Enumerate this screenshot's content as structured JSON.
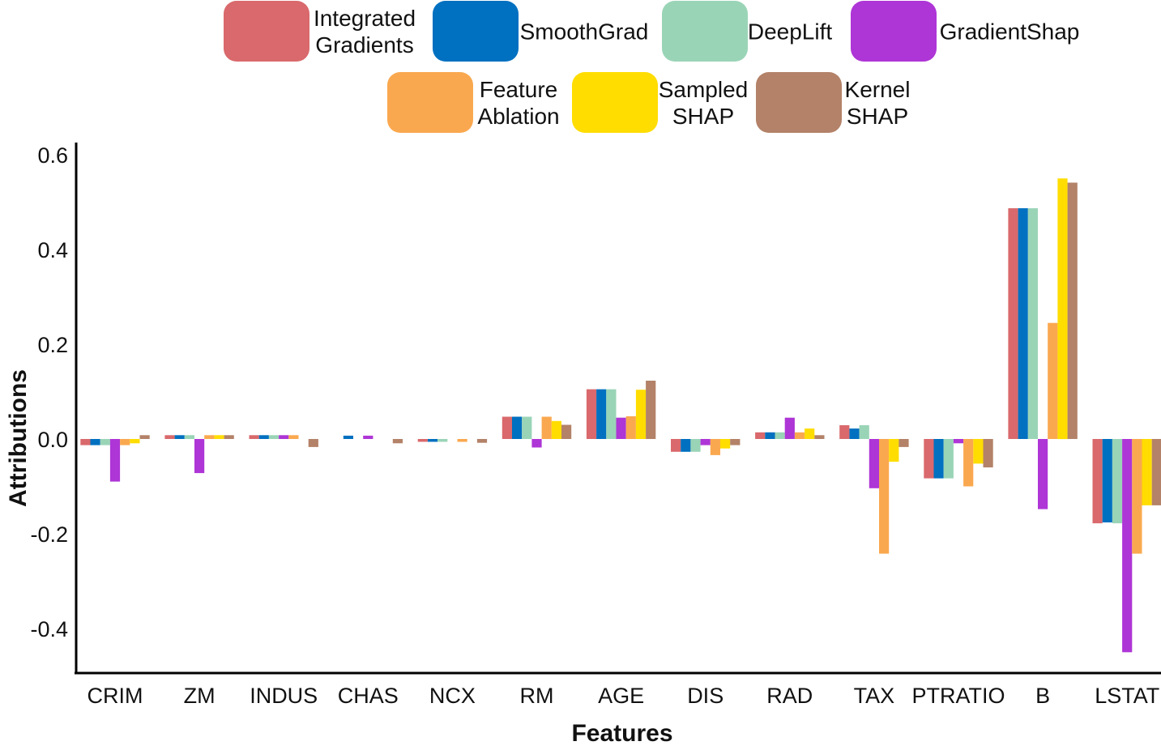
{
  "chart_data": {
    "type": "bar",
    "xlabel": "Features",
    "ylabel": "Attributions",
    "ylim": [
      -0.49,
      0.63
    ],
    "yticks": [
      0.6,
      0.4,
      0.2,
      0.0,
      -0.2,
      -0.4
    ],
    "ytick_labels": [
      "0.6",
      "0.4",
      "0.2",
      "0.0",
      "-0.2",
      "-0.4"
    ],
    "grid": false,
    "legend_position": "top",
    "categories": [
      "CRIM",
      "ZM",
      "INDUS",
      "CHAS",
      "NCX",
      "RM",
      "AGE",
      "DIS",
      "RAD",
      "TAX",
      "PTRATIO",
      "B",
      "LSTAT"
    ],
    "series": [
      {
        "name": "Integrated Gradients",
        "color": "#D9696C",
        "values": [
          -0.013,
          0.008,
          0.008,
          0.0,
          -0.006,
          0.047,
          0.105,
          -0.027,
          0.014,
          0.029,
          -0.083,
          0.487,
          -0.178
        ]
      },
      {
        "name": "SmoothGrad",
        "color": "#0070C0",
        "values": [
          -0.013,
          0.008,
          0.008,
          0.007,
          -0.006,
          0.047,
          0.105,
          -0.027,
          0.014,
          0.022,
          -0.083,
          0.487,
          -0.176
        ]
      },
      {
        "name": "DeepLift",
        "color": "#9AD4B7",
        "values": [
          -0.013,
          0.008,
          0.008,
          0.0,
          -0.006,
          0.047,
          0.105,
          -0.027,
          0.014,
          0.029,
          -0.083,
          0.487,
          -0.178
        ]
      },
      {
        "name": "GradientShap",
        "color": "#AE35D6",
        "values": [
          -0.09,
          -0.072,
          0.008,
          0.007,
          0.0,
          -0.018,
          0.045,
          -0.013,
          0.045,
          -0.104,
          -0.009,
          -0.148,
          -0.45
        ]
      },
      {
        "name": "Feature Ablation",
        "color": "#FAA84F",
        "values": [
          -0.013,
          0.008,
          0.008,
          0.0,
          -0.006,
          0.047,
          0.048,
          -0.034,
          0.014,
          -0.242,
          -0.1,
          0.245,
          -0.242
        ]
      },
      {
        "name": "Sampled SHAP",
        "color": "#FFDD00",
        "values": [
          -0.009,
          0.008,
          0.0,
          0.0,
          0.0,
          0.038,
          0.104,
          -0.02,
          0.022,
          -0.048,
          -0.052,
          0.55,
          -0.14
        ]
      },
      {
        "name": "Kernel SHAP",
        "color": "#B38268",
        "values": [
          0.008,
          0.008,
          -0.017,
          -0.009,
          -0.008,
          0.03,
          0.123,
          -0.013,
          0.008,
          -0.017,
          -0.06,
          0.541,
          -0.14
        ]
      }
    ]
  },
  "legend": [
    {
      "lines": [
        "Integrated",
        "Gradients"
      ],
      "series": 0
    },
    {
      "lines": [
        "SmoothGrad"
      ],
      "series": 1
    },
    {
      "lines": [
        "DeepLift"
      ],
      "series": 2
    },
    {
      "lines": [
        "GradientShap"
      ],
      "series": 3
    },
    {
      "lines": [
        "Feature",
        "Ablation"
      ],
      "series": 4
    },
    {
      "lines": [
        "Sampled",
        "SHAP"
      ],
      "series": 5
    },
    {
      "lines": [
        "Kernel",
        "SHAP"
      ],
      "series": 6
    }
  ]
}
